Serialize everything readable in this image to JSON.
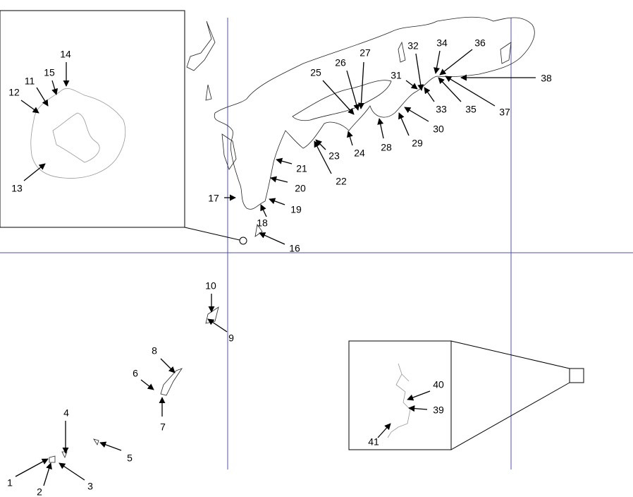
{
  "labels": [
    "1",
    "2",
    "3",
    "4",
    "5",
    "6",
    "7",
    "8",
    "9",
    "10",
    "11",
    "12",
    "13",
    "14",
    "15",
    "16",
    "17",
    "18",
    "19",
    "20",
    "21",
    "22",
    "23",
    "24",
    "25",
    "26",
    "27",
    "28",
    "29",
    "30",
    "31",
    "32",
    "33",
    "34",
    "35",
    "36",
    "37",
    "38",
    "39",
    "40",
    "41"
  ]
}
